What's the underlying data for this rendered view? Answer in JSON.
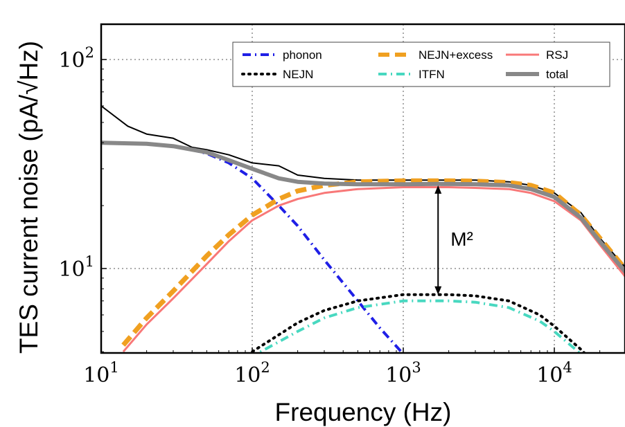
{
  "chart_data": {
    "type": "line",
    "xlabel": "Frequency (Hz)",
    "ylabel": "TES current noise (pA/√Hz)",
    "xscale": "log",
    "yscale": "log",
    "xlim": [
      10,
      30000
    ],
    "ylim": [
      4,
      150
    ],
    "grid": true,
    "legend_position": "top-right",
    "x_ticks": [
      {
        "value": 10,
        "label": "10^1"
      },
      {
        "value": 100,
        "label": "10^2"
      },
      {
        "value": 1000,
        "label": "10^3"
      },
      {
        "value": 10000,
        "label": "10^4"
      }
    ],
    "y_ticks": [
      {
        "value": 10,
        "label": "10^1"
      },
      {
        "value": 100,
        "label": "10^2"
      }
    ],
    "annotation": {
      "text": "M²",
      "x": 1700,
      "y_top": 25,
      "y_bottom": 7.5
    },
    "series": [
      {
        "name": "phonon",
        "style": "dashdot",
        "color": "#1f1fe6",
        "x": [
          10,
          20,
          30,
          40,
          50,
          70,
          100,
          150,
          200,
          300,
          500,
          700,
          1000
        ],
        "y": [
          40,
          39.5,
          38.5,
          37,
          35.5,
          32,
          27,
          20,
          16,
          11,
          7,
          5.2,
          3.9
        ]
      },
      {
        "name": "NEJN",
        "style": "dotted",
        "color": "#000000",
        "x": [
          70,
          100,
          200,
          300,
          500,
          1000,
          2000,
          3000,
          5000,
          8000,
          10000,
          15000,
          20000
        ],
        "y": [
          3.2,
          4,
          5.5,
          6.3,
          7,
          7.5,
          7.5,
          7.4,
          7,
          6,
          5.3,
          4.1,
          3.3
        ]
      },
      {
        "name": "NEJN+excess",
        "style": "dashed",
        "color": "#f0a020",
        "x": [
          14,
          20,
          30,
          50,
          70,
          100,
          150,
          200,
          300,
          500,
          1000,
          2000,
          3000,
          5000,
          7000,
          10000,
          15000,
          20000,
          30000
        ],
        "y": [
          4.3,
          5.8,
          7.8,
          11.5,
          14.5,
          18,
          21.5,
          23.5,
          25,
          26,
          26.3,
          26.3,
          26.2,
          25.8,
          25,
          23,
          18,
          14,
          9.8
        ]
      },
      {
        "name": "ITFN",
        "style": "dashdot",
        "color": "#48d8c0",
        "x": [
          80,
          100,
          200,
          300,
          500,
          1000,
          2000,
          3000,
          5000,
          8000,
          10000,
          15000,
          18000
        ],
        "y": [
          3.2,
          3.8,
          5,
          5.8,
          6.5,
          7,
          7,
          6.9,
          6.5,
          5.6,
          5,
          3.9,
          3.4
        ]
      },
      {
        "name": "RSJ",
        "style": "solid",
        "color": "#f87878",
        "x": [
          14,
          20,
          30,
          50,
          70,
          100,
          150,
          200,
          300,
          500,
          1000,
          2000,
          3000,
          5000,
          7000,
          10000,
          15000,
          20000,
          30000
        ],
        "y": [
          4,
          5.4,
          7.2,
          10.5,
          13.5,
          17,
          20,
          21.5,
          23,
          24,
          24.5,
          24.5,
          24.3,
          24,
          23,
          21,
          17,
          13,
          9
        ]
      },
      {
        "name": "total",
        "style": "solid",
        "color": "#888888",
        "x": [
          10,
          20,
          30,
          50,
          70,
          100,
          150,
          200,
          300,
          500,
          1000,
          2000,
          3000,
          5000,
          7000,
          10000,
          15000,
          20000,
          30000
        ],
        "y": [
          40,
          39.5,
          38.5,
          36,
          33,
          30,
          27,
          26,
          25.5,
          25.3,
          25.3,
          25.4,
          25.3,
          25,
          24,
          22,
          17.5,
          13.5,
          9.5
        ]
      },
      {
        "name": "",
        "style": "solid",
        "color": "#000000",
        "x": [
          10,
          15,
          20,
          30,
          40,
          50,
          70,
          100,
          150,
          200,
          300,
          500,
          1000,
          2000,
          3000,
          5000,
          7000,
          10000,
          15000,
          20000,
          30000
        ],
        "y": [
          60,
          48,
          44,
          42,
          38,
          37,
          35,
          32,
          31,
          28,
          27,
          26.5,
          26.5,
          26.5,
          26.5,
          26,
          25,
          23,
          18.5,
          14,
          10
        ]
      }
    ]
  }
}
